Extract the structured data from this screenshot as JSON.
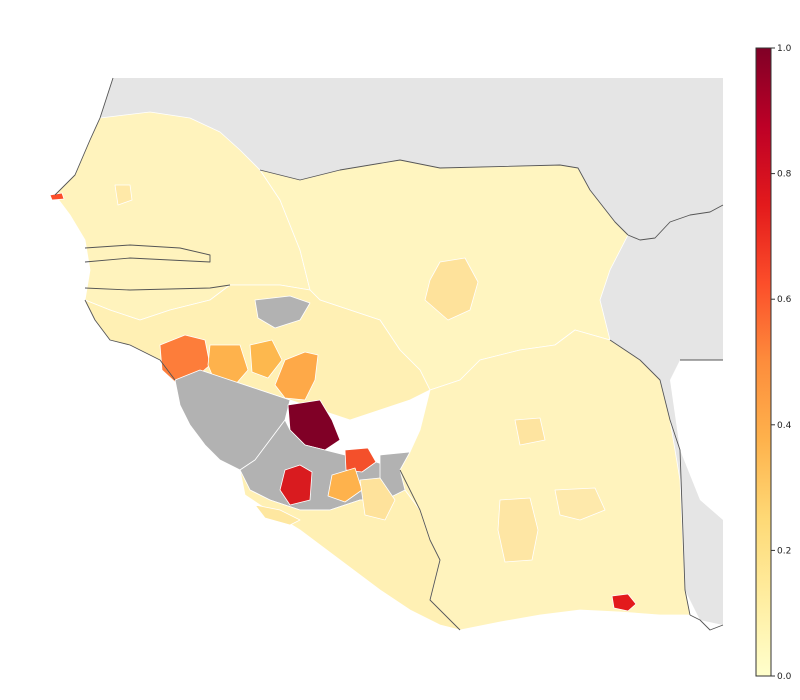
{
  "colors": {
    "background_land": "#e5e5e5",
    "no_data": "#b2b2b2",
    "scale": [
      "#ffffcc",
      "#ffeda0",
      "#fed976",
      "#feb24c",
      "#fd8d3c",
      "#fc4e2a",
      "#e31a1c",
      "#bd0026",
      "#800026"
    ]
  },
  "legend": {
    "min": 0.0,
    "max": 1.0,
    "ticks": [
      {
        "value": 1.0,
        "label": "1.0"
      },
      {
        "value": 0.8,
        "label": "0.8"
      },
      {
        "value": 0.6,
        "label": "0.6"
      },
      {
        "value": 0.4,
        "label": "0.4"
      },
      {
        "value": 0.2,
        "label": "0.2"
      },
      {
        "value": 0.0,
        "label": "0.0"
      }
    ]
  },
  "map_data": {
    "type": "choropleth",
    "regions": [
      {
        "id": "dakar",
        "value": 0.7
      },
      {
        "id": "senegal-interior",
        "value": 0.2
      },
      {
        "id": "guinea-boke-coast",
        "value": 0.65
      },
      {
        "id": "guinea-middle-1",
        "value": 0.4
      },
      {
        "id": "guinea-middle-2",
        "value": 0.38
      },
      {
        "id": "guinea-kankan",
        "value": 0.45
      },
      {
        "id": "gueckedou",
        "value": 1.0
      },
      {
        "id": "kailahun-kenema",
        "value": 0.7
      },
      {
        "id": "sierra-leone-central",
        "value": 0.82
      },
      {
        "id": "liberia-lofa-east",
        "value": 0.45
      },
      {
        "id": "liberia-coast-small",
        "value": 0.35
      },
      {
        "id": "abidjan-area",
        "value": 0.85
      },
      {
        "id": "mali-interior",
        "value": 0.3
      },
      {
        "id": "ivory-coast-west",
        "value": 0.22
      },
      {
        "id": "ivory-coast-north",
        "value": 0.2
      },
      {
        "id": "ivory-coast-central",
        "value": 0.25
      }
    ]
  }
}
